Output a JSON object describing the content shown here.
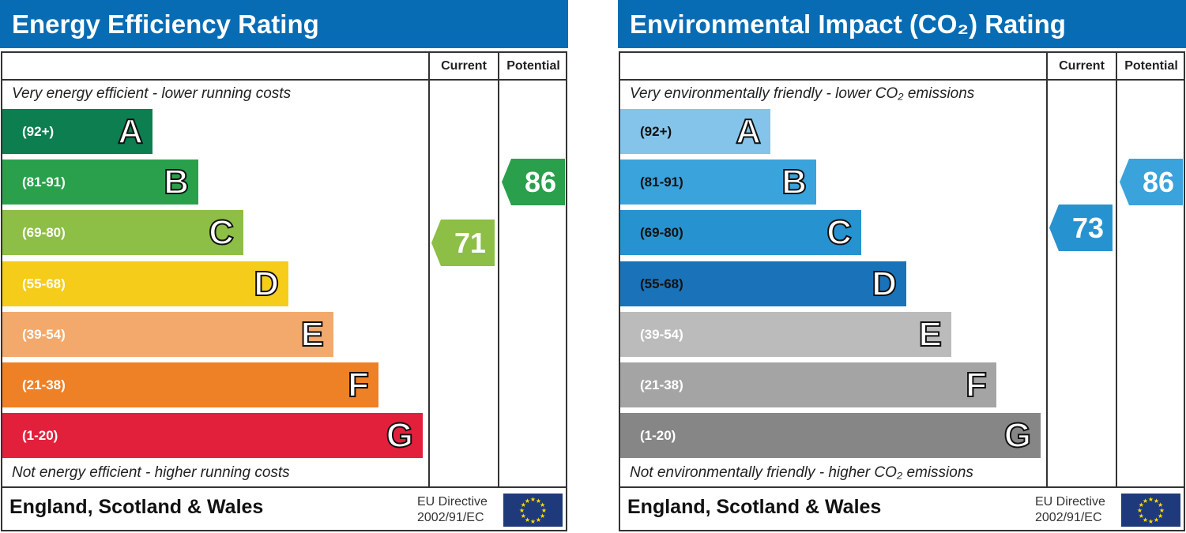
{
  "columns": {
    "current": "Current",
    "potential": "Potential"
  },
  "footer": {
    "region": "England, Scotland & Wales",
    "directive_line1": "EU Directive",
    "directive_line2": "2002/91/EC"
  },
  "chart_data": [
    {
      "type": "bar",
      "title": "Energy Efficiency Rating",
      "top_caption": "Very energy efficient - lower running costs",
      "bottom_caption": "Not energy efficient - higher running costs",
      "bands": [
        {
          "letter": "A",
          "range": "(92+)",
          "color": "#0c7e4f"
        },
        {
          "letter": "B",
          "range": "(81-91)",
          "color": "#2aa04c"
        },
        {
          "letter": "C",
          "range": "(69-80)",
          "color": "#8dbe45"
        },
        {
          "letter": "D",
          "range": "(55-68)",
          "color": "#f5cc1a"
        },
        {
          "letter": "E",
          "range": "(39-54)",
          "color": "#f2a96b"
        },
        {
          "letter": "F",
          "range": "(21-38)",
          "color": "#ee8026"
        },
        {
          "letter": "G",
          "range": "(1-20)",
          "color": "#e3203c"
        }
      ],
      "current": {
        "value": "71",
        "band": "C",
        "color": "#8dbe45"
      },
      "potential": {
        "value": "86",
        "band": "B",
        "color": "#2aa04c"
      }
    },
    {
      "type": "bar",
      "title": "Environmental Impact (CO₂) Rating",
      "top_caption": "Very environmentally friendly - lower CO₂ emissions",
      "bottom_caption": "Not environmentally friendly - higher CO₂ emissions",
      "bands": [
        {
          "letter": "A",
          "range": "(92+)",
          "color": "#84c4ea"
        },
        {
          "letter": "B",
          "range": "(81-91)",
          "color": "#3aa3dc"
        },
        {
          "letter": "C",
          "range": "(69-80)",
          "color": "#2693d0"
        },
        {
          "letter": "D",
          "range": "(55-68)",
          "color": "#1a73b9"
        },
        {
          "letter": "E",
          "range": "(39-54)",
          "color": "#bbbbbb"
        },
        {
          "letter": "F",
          "range": "(21-38)",
          "color": "#a4a4a4"
        },
        {
          "letter": "G",
          "range": "(1-20)",
          "color": "#868686"
        }
      ],
      "current": {
        "value": "73",
        "band": "C",
        "color": "#2693d0"
      },
      "potential": {
        "value": "86",
        "band": "B",
        "color": "#3aa3dc"
      }
    }
  ]
}
